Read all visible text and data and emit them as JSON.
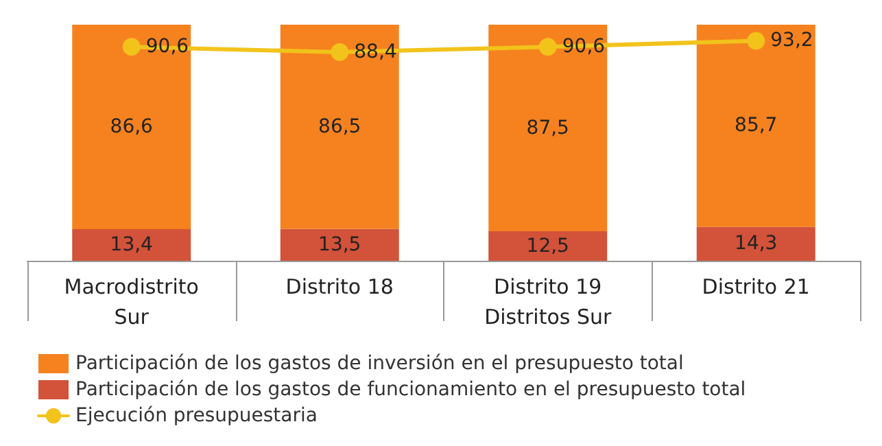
{
  "chart_data": {
    "type": "bar",
    "stacked": true,
    "categories": [
      "Macrodistrito\nSur",
      "Distrito 18",
      "Distrito 19\nDistritos Sur",
      "Distrito 21"
    ],
    "series": [
      {
        "name": "Participación de los gastos de funcionamiento en el presupuesto total",
        "color": "#d2523a",
        "values": [
          13.4,
          13.5,
          12.5,
          14.3
        ],
        "value_labels": [
          "13,4",
          "13,5",
          "12,5",
          "14,3"
        ]
      },
      {
        "name": "Participación de los gastos de inversión en el presupuesto total",
        "color": "#f5821f",
        "values": [
          86.6,
          86.5,
          87.5,
          85.7
        ],
        "value_labels": [
          "86,6",
          "86,5",
          "87,5",
          "85,7"
        ]
      },
      {
        "name": "Ejecución presupuestaria",
        "type": "line",
        "color": "#f2c31b",
        "marker": "circle",
        "values": [
          90.6,
          88.4,
          90.6,
          93.2
        ],
        "value_labels": [
          "90,6",
          "88,4",
          "90,6",
          "93,2"
        ]
      }
    ],
    "tick_labels": "x",
    "legend": "bottom"
  }
}
